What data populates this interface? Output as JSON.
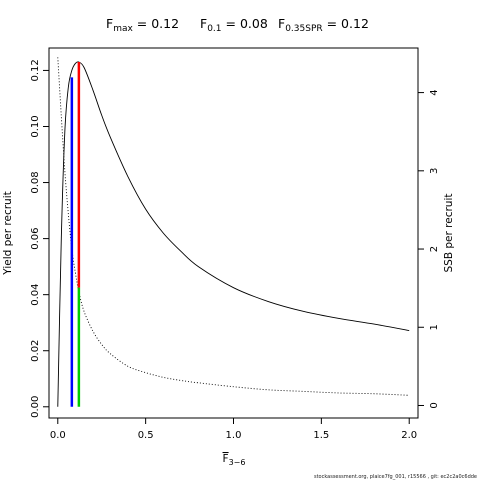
{
  "chart_data": {
    "type": "line",
    "title_parts": [
      {
        "main": "F",
        "sub": "max",
        "rest": " = 0.12"
      },
      {
        "main": "F",
        "sub": "0.1",
        "rest": " = 0.08"
      },
      {
        "main": "F",
        "sub": "0.35SPR",
        "rest": " = 0.12"
      }
    ],
    "xlabel": {
      "main": "F",
      "sub": "3−6"
    },
    "ylabel_left": "Yield per recruit",
    "ylabel_right": "SSB per recruit",
    "xlim": [
      -0.05,
      2.05
    ],
    "ylim_left": [
      -0.004,
      0.128
    ],
    "ylim_right": [
      -0.16,
      4.57
    ],
    "x_ticks": [
      0,
      0.5,
      1.0,
      1.5,
      2.0
    ],
    "x_tick_labels": [
      "0.0",
      "0.5",
      "1.0",
      "1.5",
      "2.0"
    ],
    "y_left_ticks": [
      0,
      0.02,
      0.04,
      0.06,
      0.08,
      0.1,
      0.12
    ],
    "y_left_tick_labels": [
      "0.00",
      "0.02",
      "0.04",
      "0.06",
      "0.08",
      "0.10",
      "0.12"
    ],
    "y_right_ticks": [
      0,
      1,
      2,
      3,
      4
    ],
    "y_right_tick_labels": [
      "0",
      "1",
      "2",
      "3",
      "4"
    ],
    "series": [
      {
        "axis": "left",
        "style": "solid",
        "color": "#000000",
        "x": [
          0,
          0.02,
          0.04,
          0.06,
          0.08,
          0.1,
          0.12,
          0.15,
          0.2,
          0.25,
          0.3,
          0.4,
          0.5,
          0.6,
          0.7,
          0.8,
          1.0,
          1.2,
          1.4,
          1.6,
          1.8,
          2.0
        ],
        "y": [
          0,
          0.06,
          0.098,
          0.114,
          0.12,
          0.1225,
          0.123,
          0.121,
          0.113,
          0.104,
          0.096,
          0.082,
          0.0705,
          0.062,
          0.0555,
          0.05,
          0.0425,
          0.0375,
          0.034,
          0.0315,
          0.0295,
          0.0272
        ]
      },
      {
        "axis": "right",
        "style": "dotted",
        "color": "#000000",
        "x": [
          0,
          0.02,
          0.04,
          0.06,
          0.08,
          0.1,
          0.12,
          0.15,
          0.2,
          0.25,
          0.3,
          0.4,
          0.5,
          0.6,
          0.7,
          0.8,
          1.0,
          1.2,
          1.4,
          1.6,
          1.8,
          2.0
        ],
        "y": [
          4.45,
          3.7,
          3.0,
          2.45,
          2.0,
          1.7,
          1.45,
          1.2,
          0.95,
          0.78,
          0.66,
          0.5,
          0.42,
          0.36,
          0.32,
          0.29,
          0.24,
          0.2,
          0.18,
          0.16,
          0.15,
          0.13
        ]
      }
    ],
    "reference_lines": [
      {
        "name": "F0.1",
        "color": "#0000ff",
        "x": 0.08,
        "y0": 0,
        "y1": 0.1175
      },
      {
        "name": "Fmax",
        "color": "#ff0000",
        "x": 0.12,
        "y0": 0.0425,
        "y1": 0.123
      },
      {
        "name": "F0.35SPR",
        "color": "#00cc00",
        "x": 0.12,
        "y0": 0,
        "y1": 0.0425
      }
    ],
    "footer": "stockassessment.org, plaice7fg_001, r15566 , git: ec2c2a0c6dde"
  }
}
